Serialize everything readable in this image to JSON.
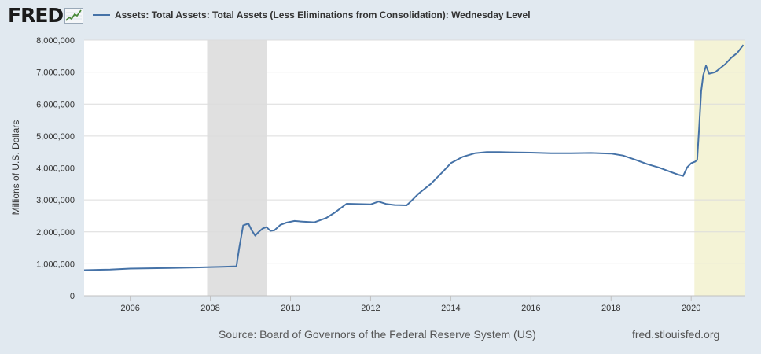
{
  "logo": {
    "text": "FRED"
  },
  "legend": {
    "label": "Assets: Total Assets: Total Assets (Less Eliminations from Consolidation): Wednesday Level",
    "color": "#4572a7"
  },
  "footer": {
    "source": "Source: Board of Governors of the Federal Reserve System (US)",
    "url": "fred.stlouisfed.org"
  },
  "chart_data": {
    "type": "line",
    "title": "",
    "ylabel": "Millions of U.S. Dollars",
    "xlabel": "",
    "xlim": [
      2004.85,
      2021.35
    ],
    "ylim": [
      0,
      8000000
    ],
    "y_ticks": [
      0,
      1000000,
      2000000,
      3000000,
      4000000,
      5000000,
      6000000,
      7000000,
      8000000
    ],
    "y_tick_labels": [
      "0",
      "1,000,000",
      "2,000,000",
      "3,000,000",
      "4,000,000",
      "5,000,000",
      "6,000,000",
      "7,000,000",
      "8,000,000"
    ],
    "x_ticks": [
      2006,
      2008,
      2010,
      2012,
      2014,
      2016,
      2018,
      2020
    ],
    "x_tick_labels": [
      "2006",
      "2008",
      "2010",
      "2012",
      "2014",
      "2016",
      "2018",
      "2020"
    ],
    "grid": true,
    "shaded_periods": [
      {
        "label": "recession",
        "start": 2007.92,
        "end": 2009.42,
        "color": "#e0e0e0"
      },
      {
        "label": "recession",
        "start": 2020.08,
        "end": 2021.35,
        "color": "#f4f3d6"
      }
    ],
    "series": [
      {
        "color": "#4572a7",
        "x": [
          2004.85,
          2005.5,
          2006.0,
          2006.5,
          2007.0,
          2007.5,
          2007.9,
          2008.3,
          2008.65,
          2008.72,
          2008.82,
          2008.95,
          2009.03,
          2009.12,
          2009.2,
          2009.3,
          2009.4,
          2009.5,
          2009.6,
          2009.75,
          2009.9,
          2010.1,
          2010.3,
          2010.6,
          2010.9,
          2011.1,
          2011.4,
          2011.7,
          2012.0,
          2012.2,
          2012.4,
          2012.6,
          2012.9,
          2013.0,
          2013.2,
          2013.5,
          2013.8,
          2014.0,
          2014.3,
          2014.6,
          2014.9,
          2015.2,
          2015.5,
          2016.0,
          2016.5,
          2017.0,
          2017.5,
          2018.0,
          2018.3,
          2018.6,
          2018.9,
          2019.2,
          2019.5,
          2019.7,
          2019.8,
          2019.9,
          2020.0,
          2020.1,
          2020.15,
          2020.2,
          2020.25,
          2020.3,
          2020.37,
          2020.45,
          2020.6,
          2020.7,
          2020.85,
          2021.0,
          2021.15,
          2021.3
        ],
        "values": [
          800000,
          820000,
          850000,
          860000,
          870000,
          880000,
          890000,
          905000,
          920000,
          1500000,
          2200000,
          2260000,
          2050000,
          1880000,
          1990000,
          2100000,
          2150000,
          2030000,
          2050000,
          2220000,
          2290000,
          2340000,
          2320000,
          2300000,
          2440000,
          2600000,
          2880000,
          2870000,
          2860000,
          2950000,
          2870000,
          2840000,
          2830000,
          2950000,
          3200000,
          3500000,
          3880000,
          4150000,
          4350000,
          4460000,
          4500000,
          4500000,
          4490000,
          4480000,
          4460000,
          4460000,
          4470000,
          4450000,
          4390000,
          4260000,
          4120000,
          4010000,
          3870000,
          3780000,
          3750000,
          4020000,
          4150000,
          4200000,
          4250000,
          5300000,
          6400000,
          6900000,
          7200000,
          6950000,
          7000000,
          7100000,
          7250000,
          7450000,
          7600000,
          7850000
        ]
      }
    ]
  }
}
